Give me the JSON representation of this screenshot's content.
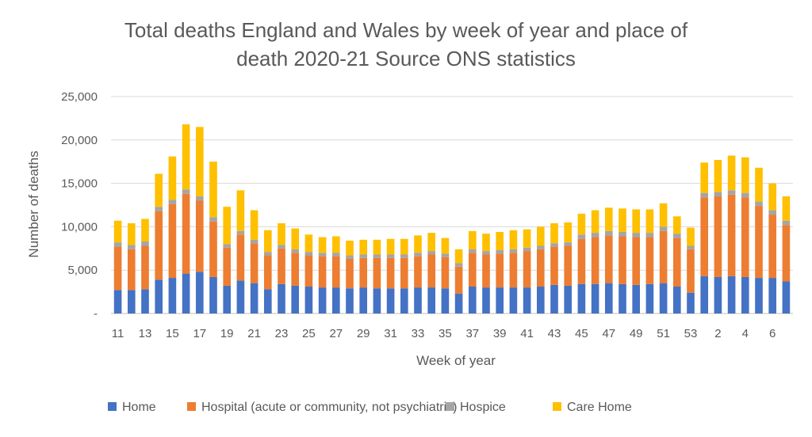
{
  "chart_data": {
    "type": "bar",
    "stacked": true,
    "title_line1": "Total deaths England and Wales by week of year and place of",
    "title_line2": "death 2020-21 Source ONS statistics",
    "xlabel": "Week of year",
    "ylabel": "Number of deaths",
    "ylim": [
      0,
      25000
    ],
    "yticks": [
      0,
      5000,
      10000,
      15000,
      20000,
      25000
    ],
    "ytick_labels": [
      "-",
      "5,000",
      "10,000",
      "15,000",
      "20,000",
      "25,000"
    ],
    "grid": true,
    "legend_position": "bottom",
    "categories": [
      "11",
      "12",
      "13",
      "14",
      "15",
      "16",
      "17",
      "18",
      "19",
      "20",
      "21",
      "22",
      "23",
      "24",
      "25",
      "26",
      "27",
      "28",
      "29",
      "30",
      "31",
      "32",
      "33",
      "34",
      "35",
      "36",
      "37",
      "38",
      "39",
      "40",
      "41",
      "42",
      "43",
      "44",
      "45",
      "46",
      "47",
      "48",
      "49",
      "50",
      "51",
      "52",
      "53",
      "1",
      "2",
      "3",
      "4",
      "5",
      "6",
      "7"
    ],
    "xtick_labels": [
      "11",
      "13",
      "15",
      "17",
      "19",
      "21",
      "23",
      "25",
      "27",
      "29",
      "31",
      "33",
      "35",
      "37",
      "39",
      "41",
      "43",
      "45",
      "47",
      "49",
      "51",
      "53",
      "2",
      "4",
      "6"
    ],
    "series": [
      {
        "name": "Home",
        "color": "#4472C4",
        "values": [
          2700,
          2700,
          2800,
          3900,
          4100,
          4600,
          4800,
          4200,
          3200,
          3800,
          3500,
          2800,
          3400,
          3200,
          3100,
          3000,
          3000,
          2900,
          3000,
          2900,
          2900,
          2900,
          3000,
          3000,
          2900,
          2300,
          3100,
          3000,
          3000,
          3000,
          3000,
          3100,
          3300,
          3200,
          3400,
          3400,
          3500,
          3400,
          3300,
          3400,
          3500,
          3100,
          2400,
          4300,
          4200,
          4300,
          4200,
          4100,
          4100,
          3700
        ]
      },
      {
        "name": "Hospital (acute or community, not psychiatric)",
        "color": "#ED7D31",
        "values": [
          5000,
          4700,
          5000,
          7900,
          8500,
          9200,
          8200,
          6400,
          4400,
          5300,
          4600,
          3900,
          4100,
          3800,
          3600,
          3600,
          3600,
          3400,
          3400,
          3500,
          3500,
          3500,
          3600,
          3800,
          3600,
          3100,
          3900,
          3800,
          3900,
          4000,
          4200,
          4300,
          4400,
          4600,
          5200,
          5400,
          5500,
          5500,
          5500,
          5400,
          6000,
          5600,
          5000,
          9100,
          9300,
          9400,
          9200,
          8300,
          7300,
          6500
        ]
      },
      {
        "name": "Hospice",
        "color": "#A5A5A5",
        "values": [
          500,
          500,
          500,
          500,
          500,
          500,
          500,
          500,
          400,
          400,
          400,
          400,
          400,
          400,
          400,
          400,
          400,
          400,
          400,
          400,
          400,
          400,
          400,
          400,
          400,
          400,
          400,
          400,
          400,
          400,
          400,
          400,
          400,
          400,
          500,
          500,
          500,
          500,
          500,
          500,
          500,
          500,
          400,
          500,
          500,
          500,
          500,
          500,
          500,
          500
        ]
      },
      {
        "name": "Care Home",
        "color": "#FFC000",
        "values": [
          2500,
          2500,
          2600,
          3800,
          5000,
          7500,
          8000,
          6400,
          4300,
          4700,
          3400,
          2500,
          2500,
          2400,
          2000,
          1800,
          1900,
          1700,
          1700,
          1700,
          1800,
          1800,
          2000,
          2100,
          1800,
          1600,
          2100,
          2000,
          2100,
          2200,
          2100,
          2200,
          2300,
          2300,
          2400,
          2600,
          2700,
          2700,
          2700,
          2700,
          2700,
          2000,
          2100,
          3500,
          3700,
          4000,
          4100,
          3900,
          3100,
          2800
        ]
      }
    ]
  }
}
